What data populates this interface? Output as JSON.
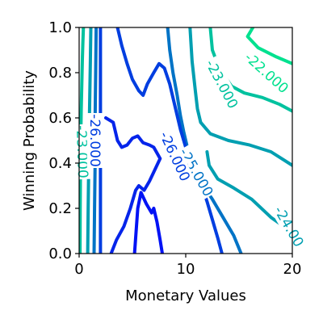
{
  "chart_data": {
    "type": "contour",
    "title": "",
    "xlabel": "Monetary Values",
    "ylabel": "Winning Probability",
    "xlim": [
      0,
      20
    ],
    "ylim": [
      0,
      1
    ],
    "x_ticks": [
      "0",
      "10",
      "20"
    ],
    "y_ticks": [
      "0.0",
      "0.2",
      "0.4",
      "0.6",
      "0.8",
      "1.0"
    ],
    "x_tick_values": [
      0,
      10,
      20
    ],
    "y_tick_values": [
      0,
      0.2,
      0.4,
      0.6,
      0.8,
      1.0
    ],
    "grid": false,
    "colormap": "winter",
    "levels": [
      {
        "label": "-22.000",
        "color": "#00e18f",
        "curves": [
          [
            [
              16.3,
              1.0
            ],
            [
              15.8,
              0.96
            ],
            [
              16.8,
              0.91
            ],
            [
              18.5,
              0.87
            ],
            [
              20,
              0.84
            ]
          ]
        ]
      },
      {
        "label": "-23.000",
        "color": "#00c29f",
        "curves": [
          [
            [
              0.4,
              1.0
            ],
            [
              0.35,
              0.93
            ],
            [
              0.3,
              0.86
            ],
            [
              0.25,
              0.75
            ],
            [
              0.2,
              0.64
            ],
            [
              0.15,
              0.5
            ],
            [
              0.12,
              0.35
            ],
            [
              0.1,
              0.2
            ],
            [
              0.08,
              0.0
            ]
          ],
          [
            [
              12.3,
              1.0
            ],
            [
              12.5,
              0.9
            ],
            [
              12.9,
              0.85
            ],
            [
              13.4,
              0.8
            ],
            [
              14.3,
              0.74
            ],
            [
              15.5,
              0.71
            ],
            [
              17.2,
              0.69
            ],
            [
              18.8,
              0.66
            ],
            [
              20,
              0.63
            ]
          ]
        ]
      },
      {
        "label": "-24.000",
        "color": "#009fb1",
        "curves": [
          [
            [
              1.1,
              1.0
            ],
            [
              1.05,
              0.85
            ],
            [
              1.0,
              0.7
            ],
            [
              0.95,
              0.55
            ],
            [
              0.9,
              0.4
            ],
            [
              0.85,
              0.2
            ],
            [
              0.8,
              0.0
            ]
          ],
          [
            [
              10.4,
              1.0
            ],
            [
              10.6,
              0.85
            ],
            [
              10.9,
              0.72
            ],
            [
              11.1,
              0.64
            ],
            [
              11.4,
              0.58
            ],
            [
              12.3,
              0.53
            ],
            [
              14.0,
              0.5
            ],
            [
              16.0,
              0.48
            ],
            [
              18.0,
              0.45
            ],
            [
              20,
              0.39
            ]
          ],
          [
            [
              12.0,
              0.45
            ],
            [
              12.2,
              0.39
            ],
            [
              13.0,
              0.33
            ],
            [
              14.5,
              0.29
            ],
            [
              16.2,
              0.24
            ],
            [
              18.0,
              0.16
            ],
            [
              19.2,
              0.12
            ],
            [
              20,
              0.1
            ]
          ]
        ]
      },
      {
        "label": "-25.000",
        "color": "#0073c6",
        "curves": [
          [
            [
              1.6,
              1.0
            ],
            [
              1.55,
              0.8
            ],
            [
              1.5,
              0.6
            ],
            [
              1.5,
              0.4
            ],
            [
              1.45,
              0.2
            ],
            [
              1.4,
              0.0
            ]
          ],
          [
            [
              8.3,
              1.0
            ],
            [
              8.5,
              0.9
            ],
            [
              8.8,
              0.8
            ],
            [
              9.2,
              0.7
            ],
            [
              9.5,
              0.61
            ],
            [
              9.8,
              0.54
            ],
            [
              10.3,
              0.44
            ],
            [
              10.8,
              0.38
            ],
            [
              11.5,
              0.31
            ],
            [
              12.5,
              0.24
            ],
            [
              13.5,
              0.16
            ],
            [
              14.5,
              0.08
            ],
            [
              15.2,
              0.0
            ]
          ]
        ]
      },
      {
        "label": "-26.000",
        "color": "#003ee0",
        "curves": [
          [
            [
              2.0,
              1.0
            ],
            [
              2.0,
              0.8
            ],
            [
              2.0,
              0.6
            ],
            [
              2.0,
              0.4
            ],
            [
              2.0,
              0.2
            ],
            [
              2.0,
              0.0
            ]
          ],
          [
            [
              3.6,
              1.0
            ],
            [
              4.0,
              0.92
            ],
            [
              4.5,
              0.84
            ],
            [
              5.0,
              0.77
            ],
            [
              5.6,
              0.72
            ],
            [
              6.0,
              0.7
            ],
            [
              6.4,
              0.75
            ],
            [
              7.0,
              0.8
            ],
            [
              7.5,
              0.84
            ],
            [
              8.0,
              0.82
            ],
            [
              8.5,
              0.75
            ],
            [
              9.0,
              0.65
            ],
            [
              9.5,
              0.55
            ],
            [
              10.0,
              0.47
            ],
            [
              10.6,
              0.41
            ],
            [
              11.0,
              0.36
            ],
            [
              11.5,
              0.3
            ],
            [
              12.0,
              0.23
            ],
            [
              12.5,
              0.15
            ],
            [
              13.0,
              0.07
            ],
            [
              13.4,
              0.0
            ]
          ]
        ]
      },
      {
        "label": "",
        "color": "#0524ea",
        "curves": [
          [
            [
              2.5,
              0.6
            ],
            [
              3.2,
              0.58
            ],
            [
              3.6,
              0.5
            ],
            [
              4.0,
              0.47
            ],
            [
              4.5,
              0.48
            ],
            [
              5.0,
              0.51
            ],
            [
              5.5,
              0.52
            ],
            [
              6.0,
              0.49
            ],
            [
              6.6,
              0.48
            ],
            [
              7.0,
              0.47
            ],
            [
              7.6,
              0.42
            ],
            [
              7.2,
              0.38
            ],
            [
              6.6,
              0.32
            ],
            [
              6.1,
              0.28
            ],
            [
              5.6,
              0.3
            ],
            [
              5.3,
              0.28
            ],
            [
              4.8,
              0.2
            ],
            [
              4.2,
              0.12
            ],
            [
              3.5,
              0.06
            ],
            [
              3.0,
              0.0
            ]
          ]
        ]
      },
      {
        "label": "",
        "color": "#0012f5",
        "curves": [
          [
            [
              5.2,
              0.0
            ],
            [
              5.5,
              0.2
            ],
            [
              5.8,
              0.27
            ],
            [
              6.3,
              0.22
            ],
            [
              6.8,
              0.18
            ],
            [
              7.0,
              0.2
            ],
            [
              7.3,
              0.14
            ],
            [
              7.6,
              0.06
            ],
            [
              7.8,
              0.0
            ]
          ]
        ]
      }
    ],
    "contour_labels": [
      {
        "text": "-22.000",
        "at": [
          17.6,
          0.8
        ],
        "angle": 42,
        "color": "#00e18f"
      },
      {
        "text": "-23.000",
        "at": [
          13.4,
          0.75
        ],
        "angle": 62,
        "color": "#00c29f"
      },
      {
        "text": "-23.000",
        "at": [
          0.3,
          0.45
        ],
        "angle": 88,
        "color": "#00c29f"
      },
      {
        "text": "-24.00",
        "at": [
          19.7,
          0.12
        ],
        "angle": 60,
        "color": "#009fb1"
      },
      {
        "text": "-25.000",
        "at": [
          11.0,
          0.36
        ],
        "angle": 60,
        "color": "#0073c6"
      },
      {
        "text": "-26.000",
        "at": [
          9.0,
          0.43
        ],
        "angle": 65,
        "color": "#003ee0"
      },
      {
        "text": "-26.000",
        "at": [
          1.5,
          0.5
        ],
        "angle": 90,
        "color": "#003ee0"
      }
    ]
  }
}
